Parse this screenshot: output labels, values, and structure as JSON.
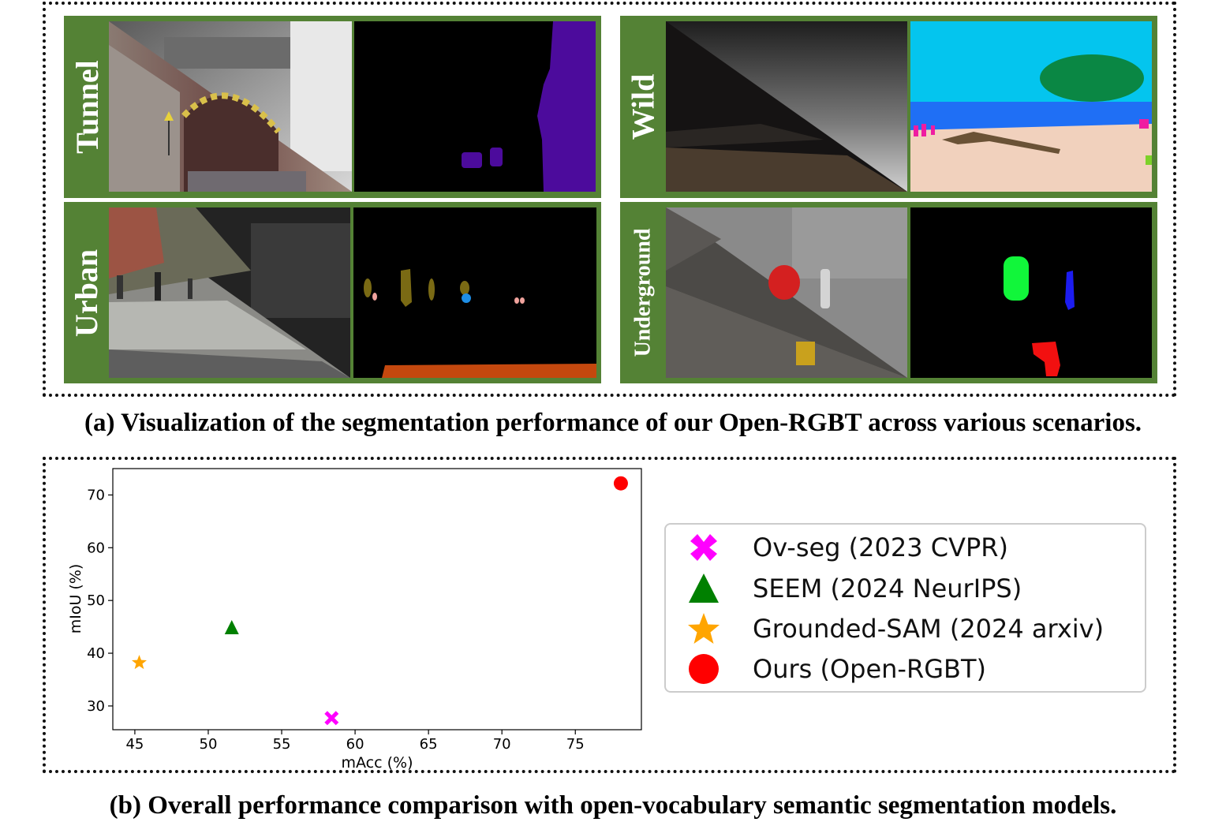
{
  "figure_a": {
    "scenes": [
      {
        "id": "tunnel",
        "label": "Tunnel"
      },
      {
        "id": "wild",
        "label": "Wild"
      },
      {
        "id": "urban",
        "label": "Urban"
      },
      {
        "id": "underground",
        "label": "Underground"
      }
    ],
    "caption": "(a) Visualization of the segmentation performance of  our Open-RGBT across various scenarios."
  },
  "figure_b": {
    "caption": "(b) Overall performance comparison with open-vocabulary semantic segmentation models."
  },
  "chart_data": {
    "type": "scatter",
    "xlabel": "mAcc (%)",
    "ylabel": "mIoU (%)",
    "xlim": [
      43.5,
      79.5
    ],
    "ylim": [
      25.5,
      75
    ],
    "xticks": [
      45,
      50,
      55,
      60,
      65,
      70,
      75
    ],
    "yticks": [
      30,
      40,
      50,
      60,
      70
    ],
    "grid": false,
    "legend_position": "right",
    "series": [
      {
        "name": "Ov-seg (2023 CVPR)",
        "marker": "x",
        "color": "#ff00ff",
        "x": 58.4,
        "y": 27.7
      },
      {
        "name": "SEEM (2024 NeurIPS)",
        "marker": "triangle",
        "color": "#008000",
        "x": 51.6,
        "y": 44.8
      },
      {
        "name": "Grounded-SAM (2024 arxiv)",
        "marker": "star",
        "color": "#ffa500",
        "x": 45.3,
        "y": 38.2
      },
      {
        "name": "Ours (Open-RGBT)",
        "marker": "circle",
        "color": "#ff0000",
        "x": 78.1,
        "y": 72.2
      }
    ]
  }
}
